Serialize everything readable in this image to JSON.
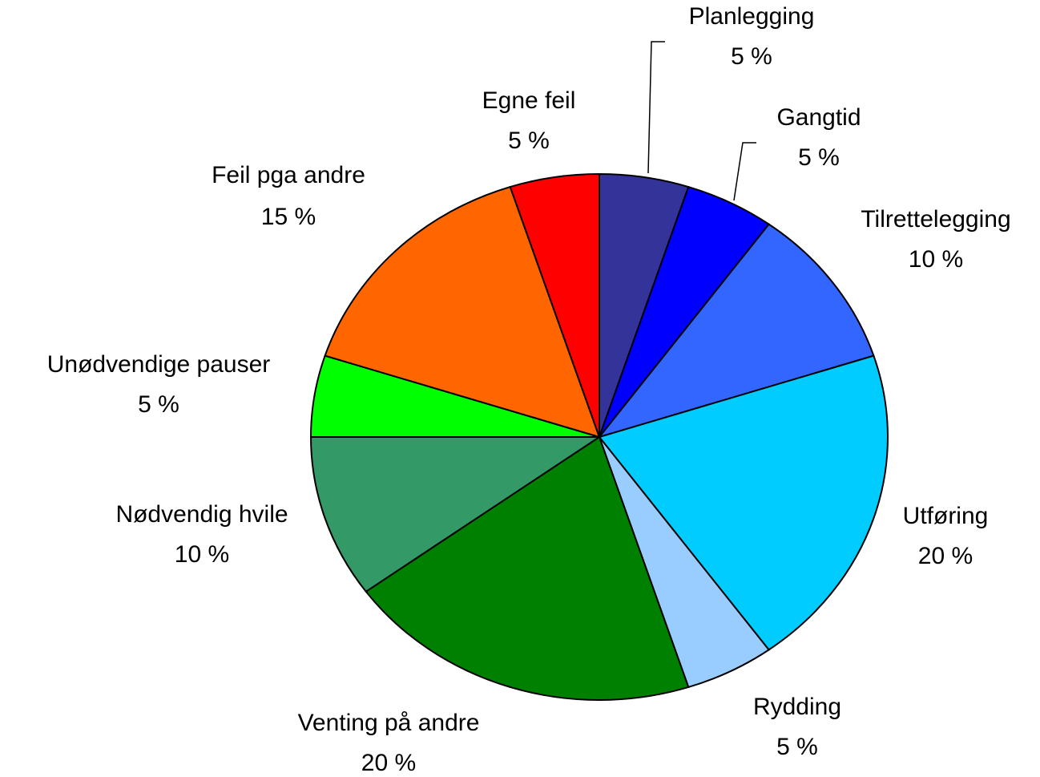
{
  "chart_data": {
    "type": "pie",
    "categories": [
      "Planlegging",
      "Gangtid",
      "Tilrettelegging",
      "Utføring",
      "Rydding",
      "Venting på andre",
      "Nødvendig hvile",
      "Unødvendige pauser",
      "Feil pga andre",
      "Egne feil"
    ],
    "values": [
      5,
      5,
      10,
      20,
      5,
      20,
      10,
      5,
      15,
      5
    ],
    "value_labels": [
      "5 %",
      "5 %",
      "10 %",
      "20 %",
      "5 %",
      "20 %",
      "10 %",
      "5 %",
      "15 %",
      "5 %"
    ],
    "colors": [
      "#333399",
      "#0000ff",
      "#3366ff",
      "#00ccff",
      "#99ccff",
      "#008000",
      "#339966",
      "#00ff00",
      "#ff6600",
      "#ff0000"
    ]
  }
}
